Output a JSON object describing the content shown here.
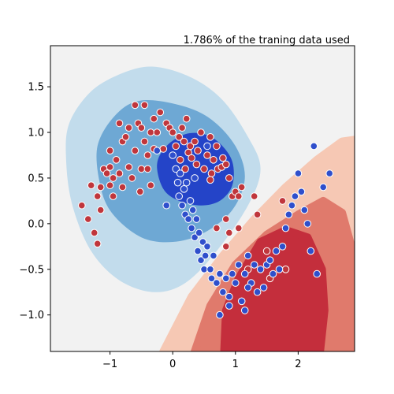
{
  "chart_data": {
    "type": "scatter",
    "title": "1.786% of the traning data used",
    "xlabel": "",
    "ylabel": "",
    "xlim": [
      -1.95,
      2.9
    ],
    "ylim": [
      -1.4,
      1.95
    ],
    "x_ticks": [
      -1,
      0,
      1,
      2
    ],
    "y_ticks": [
      -1.0,
      -0.5,
      0.0,
      0.5,
      1.0,
      1.5
    ],
    "x_tick_labels": [
      "−1",
      "0",
      "1",
      "2"
    ],
    "y_tick_labels": [
      "−1.0",
      "−0.5",
      "0.0",
      "0.5",
      "1.0",
      "1.5"
    ],
    "grid": false,
    "legend": "none",
    "colors": {
      "class_red": "#c0363c",
      "class_blue": "#2f4fcc",
      "blue_light": "#c2dcec",
      "blue_mid": "#6ea8d4",
      "blue_dark": "#2444c8",
      "red_light": "#f6c8b4",
      "red_mid": "#e07a6c",
      "red_dark": "#c42e3c",
      "background": "#f2f2f2"
    },
    "contours": {
      "blue": [
        {
          "level": "light",
          "points": [
            [
              -1.65,
              1.1
            ],
            [
              -1.3,
              1.45
            ],
            [
              -0.8,
              1.65
            ],
            [
              -0.3,
              1.72
            ],
            [
              0.3,
              1.6
            ],
            [
              0.8,
              1.35
            ],
            [
              1.2,
              0.95
            ],
            [
              1.4,
              0.6
            ],
            [
              1.2,
              0.2
            ],
            [
              0.7,
              -0.3
            ],
            [
              0.2,
              -0.65
            ],
            [
              -0.3,
              -0.75
            ],
            [
              -0.85,
              -0.62
            ],
            [
              -1.3,
              -0.3
            ],
            [
              -1.6,
              0.2
            ],
            [
              -1.7,
              0.7
            ]
          ]
        },
        {
          "level": "mid",
          "points": [
            [
              -1.2,
              0.85
            ],
            [
              -0.9,
              1.2
            ],
            [
              -0.5,
              1.35
            ],
            [
              0.1,
              1.3
            ],
            [
              0.6,
              1.15
            ],
            [
              1.0,
              0.85
            ],
            [
              1.15,
              0.5
            ],
            [
              0.95,
              0.15
            ],
            [
              0.5,
              -0.1
            ],
            [
              0.0,
              -0.2
            ],
            [
              -0.5,
              -0.15
            ],
            [
              -0.95,
              0.1
            ],
            [
              -1.15,
              0.4
            ]
          ]
        },
        {
          "level": "dark",
          "points": [
            [
              -0.25,
              0.65
            ],
            [
              -0.1,
              0.85
            ],
            [
              0.2,
              0.98
            ],
            [
              0.5,
              0.98
            ],
            [
              0.75,
              0.88
            ],
            [
              0.95,
              0.68
            ],
            [
              0.95,
              0.42
            ],
            [
              0.75,
              0.25
            ],
            [
              0.45,
              0.2
            ],
            [
              0.1,
              0.25
            ],
            [
              -0.15,
              0.38
            ]
          ]
        }
      ],
      "red": [
        {
          "level": "light",
          "points": [
            [
              -0.15,
              -1.4
            ],
            [
              0.3,
              -0.8
            ],
            [
              0.8,
              -0.35
            ],
            [
              1.3,
              0.05
            ],
            [
              1.8,
              0.4
            ],
            [
              2.3,
              0.7
            ],
            [
              2.7,
              0.9
            ],
            [
              2.9,
              0.92
            ],
            [
              2.9,
              -1.4
            ]
          ]
        },
        {
          "level": "mid",
          "points": [
            [
              0.35,
              -1.4
            ],
            [
              0.6,
              -0.9
            ],
            [
              1.0,
              -0.45
            ],
            [
              1.5,
              -0.12
            ],
            [
              2.0,
              0.1
            ],
            [
              2.4,
              0.25
            ],
            [
              2.7,
              0.12
            ],
            [
              2.85,
              -0.25
            ],
            [
              2.85,
              -1.4
            ]
          ]
        },
        {
          "level": "dark",
          "points": [
            [
              0.82,
              -1.4
            ],
            [
              0.85,
              -0.95
            ],
            [
              1.05,
              -0.6
            ],
            [
              1.4,
              -0.2
            ],
            [
              1.8,
              -0.07
            ],
            [
              2.15,
              -0.15
            ],
            [
              2.38,
              -0.5
            ],
            [
              2.42,
              -0.95
            ],
            [
              2.35,
              -1.4
            ]
          ]
        }
      ]
    },
    "series": [
      {
        "name": "",
        "class": "red",
        "points": [
          [
            -1.45,
            0.2
          ],
          [
            -1.3,
            0.42
          ],
          [
            -1.35,
            0.05
          ],
          [
            -1.2,
            0.3
          ],
          [
            -1.25,
            -0.1
          ],
          [
            -1.2,
            -0.22
          ],
          [
            -1.15,
            0.4
          ],
          [
            -1.1,
            0.6
          ],
          [
            -1.05,
            0.55
          ],
          [
            -1.0,
            0.8
          ],
          [
            -1.0,
            0.62
          ],
          [
            -0.95,
            0.5
          ],
          [
            -0.95,
            0.3
          ],
          [
            -0.9,
            0.7
          ],
          [
            -0.85,
            0.55
          ],
          [
            -0.8,
            0.4
          ],
          [
            -0.8,
            0.9
          ],
          [
            -0.75,
            0.95
          ],
          [
            -0.7,
            1.05
          ],
          [
            -0.7,
            0.62
          ],
          [
            -0.65,
            0.5
          ],
          [
            -0.6,
            0.8
          ],
          [
            -0.55,
            1.1
          ],
          [
            -0.5,
            1.05
          ],
          [
            -0.5,
            0.6
          ],
          [
            -0.45,
            1.3
          ],
          [
            -0.45,
            0.9
          ],
          [
            -0.4,
            0.75
          ],
          [
            -0.4,
            0.6
          ],
          [
            -0.35,
            1.0
          ],
          [
            -0.35,
            0.42
          ],
          [
            -0.3,
            1.15
          ],
          [
            -0.3,
            0.82
          ],
          [
            -0.25,
            1.0
          ],
          [
            -0.2,
            1.22
          ],
          [
            -0.15,
            0.82
          ],
          [
            -0.1,
            1.1
          ],
          [
            -0.05,
            1.05
          ],
          [
            0.0,
            1.0
          ],
          [
            0.05,
            0.85
          ],
          [
            0.1,
            0.95
          ],
          [
            0.12,
            0.7
          ],
          [
            0.15,
            1.05
          ],
          [
            0.18,
            0.9
          ],
          [
            0.2,
            0.6
          ],
          [
            0.22,
            1.15
          ],
          [
            0.25,
            0.78
          ],
          [
            0.28,
            0.85
          ],
          [
            0.3,
            0.72
          ],
          [
            0.35,
            0.9
          ],
          [
            0.38,
            0.65
          ],
          [
            0.4,
            0.8
          ],
          [
            0.45,
            1.0
          ],
          [
            0.5,
            0.6
          ],
          [
            0.55,
            0.75
          ],
          [
            0.6,
            0.95
          ],
          [
            0.62,
            0.55
          ],
          [
            0.65,
            0.7
          ],
          [
            0.7,
            0.85
          ],
          [
            0.72,
            0.6
          ],
          [
            0.78,
            0.62
          ],
          [
            0.8,
            0.72
          ],
          [
            0.85,
            0.65
          ],
          [
            0.9,
            0.5
          ],
          [
            0.95,
            0.3
          ],
          [
            1.0,
            0.35
          ],
          [
            1.05,
            0.3
          ],
          [
            1.1,
            0.4
          ],
          [
            1.3,
            0.3
          ],
          [
            1.35,
            0.1
          ],
          [
            1.05,
            -0.05
          ],
          [
            0.9,
            -0.1
          ],
          [
            0.85,
            -0.25
          ],
          [
            1.2,
            -0.5
          ],
          [
            1.5,
            -0.3
          ],
          [
            1.75,
            0.25
          ],
          [
            1.8,
            -0.5
          ],
          [
            1.55,
            -0.6
          ],
          [
            0.7,
            -0.05
          ],
          [
            0.85,
            0.05
          ],
          [
            0.6,
            0.48
          ],
          [
            -0.52,
            0.35
          ],
          [
            -1.0,
            0.42
          ],
          [
            -0.6,
            1.3
          ],
          [
            -0.85,
            1.1
          ],
          [
            -1.15,
            0.15
          ]
        ]
      },
      {
        "name": "",
        "class": "blue",
        "points": [
          [
            0.0,
            0.75
          ],
          [
            0.05,
            0.6
          ],
          [
            0.08,
            0.45
          ],
          [
            0.1,
            0.3
          ],
          [
            0.12,
            0.55
          ],
          [
            0.15,
            0.2
          ],
          [
            0.18,
            0.38
          ],
          [
            0.2,
            0.1
          ],
          [
            0.22,
            0.45
          ],
          [
            0.25,
            0.05
          ],
          [
            0.28,
            0.25
          ],
          [
            0.3,
            -0.05
          ],
          [
            0.32,
            0.15
          ],
          [
            0.35,
            -0.15
          ],
          [
            0.38,
            0.05
          ],
          [
            0.4,
            -0.3
          ],
          [
            0.42,
            -0.1
          ],
          [
            0.45,
            -0.4
          ],
          [
            0.48,
            -0.2
          ],
          [
            0.5,
            -0.5
          ],
          [
            0.52,
            -0.35
          ],
          [
            0.55,
            -0.25
          ],
          [
            0.6,
            -0.5
          ],
          [
            0.62,
            -0.6
          ],
          [
            0.65,
            -0.35
          ],
          [
            0.7,
            -0.65
          ],
          [
            0.75,
            -0.55
          ],
          [
            0.8,
            -0.75
          ],
          [
            0.85,
            -0.6
          ],
          [
            0.9,
            -0.8
          ],
          [
            0.95,
            -0.55
          ],
          [
            1.0,
            -0.65
          ],
          [
            1.05,
            -0.45
          ],
          [
            1.1,
            -0.85
          ],
          [
            1.15,
            -0.55
          ],
          [
            1.2,
            -0.35
          ],
          [
            1.25,
            -0.65
          ],
          [
            1.3,
            -0.45
          ],
          [
            1.35,
            -0.75
          ],
          [
            1.4,
            -0.5
          ],
          [
            1.45,
            -0.7
          ],
          [
            1.5,
            -0.45
          ],
          [
            1.55,
            -0.4
          ],
          [
            1.6,
            -0.55
          ],
          [
            1.65,
            -0.3
          ],
          [
            1.7,
            -0.5
          ],
          [
            1.75,
            -0.25
          ],
          [
            1.8,
            -0.05
          ],
          [
            1.85,
            0.1
          ],
          [
            1.9,
            0.2
          ],
          [
            1.95,
            0.3
          ],
          [
            2.0,
            0.55
          ],
          [
            2.05,
            0.35
          ],
          [
            2.1,
            0.15
          ],
          [
            2.15,
            0.0
          ],
          [
            2.2,
            -0.3
          ],
          [
            2.25,
            0.85
          ],
          [
            2.3,
            -0.55
          ],
          [
            2.4,
            0.4
          ],
          [
            2.5,
            0.55
          ],
          [
            1.2,
            -0.7
          ],
          [
            0.75,
            -1.0
          ],
          [
            0.9,
            -0.9
          ],
          [
            1.15,
            -0.95
          ],
          [
            -0.25,
            0.8
          ],
          [
            0.55,
            0.85
          ],
          [
            0.35,
            0.5
          ],
          [
            -0.1,
            0.2
          ]
        ]
      }
    ]
  }
}
